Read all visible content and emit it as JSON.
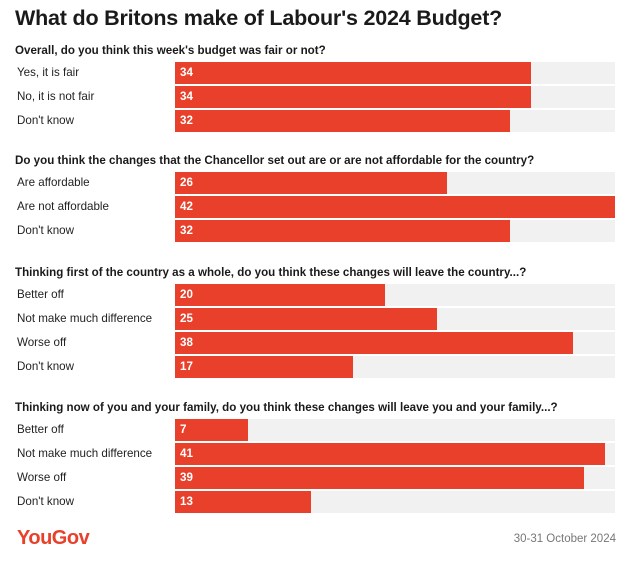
{
  "title": "What do Britons make of Labour's 2024 Budget?",
  "logo_text": "YouGov",
  "date": "30-31 October 2024",
  "colors": {
    "bar": "#e8402b",
    "track": "#f1f1f1"
  },
  "chart_data": {
    "type": "bar",
    "orientation": "horizontal",
    "xlim": [
      0,
      42
    ],
    "groups": [
      {
        "question": "Overall, do you think this week's budget was fair or not?",
        "categories": [
          "Yes, it is fair",
          "No, it is not fair",
          "Don't know"
        ],
        "values": [
          34,
          34,
          32
        ]
      },
      {
        "question": "Do you think the changes that the Chancellor set out are or are not affordable for the country?",
        "categories": [
          "Are affordable",
          "Are not affordable",
          "Don't know"
        ],
        "values": [
          26,
          42,
          32
        ]
      },
      {
        "question": "Thinking first of the country as a whole, do you think these changes will leave the country...?",
        "categories": [
          "Better off",
          "Not make much difference",
          "Worse off",
          "Don't know"
        ],
        "values": [
          20,
          25,
          38,
          17
        ]
      },
      {
        "question": "Thinking now of you and your family, do you think these changes will leave you and your family...?",
        "categories": [
          "Better off",
          "Not make much difference",
          "Worse off",
          "Don't know"
        ],
        "values": [
          7,
          41,
          39,
          13
        ]
      }
    ]
  }
}
